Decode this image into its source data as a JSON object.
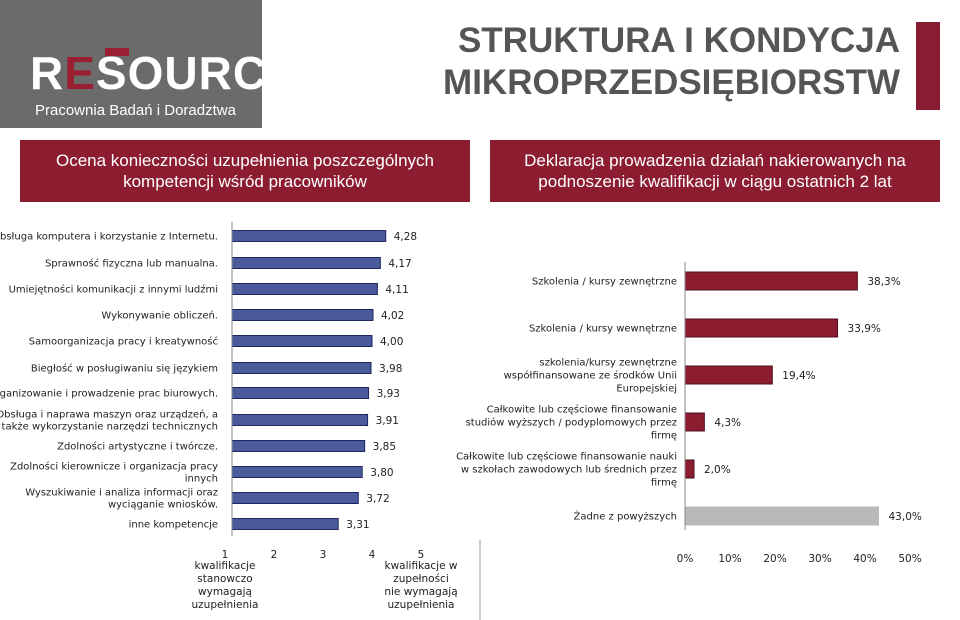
{
  "logo": {
    "word_re": "R",
    "word_e": "E",
    "word_rest": "SOURCE",
    "subtitle": "Pracownia Badań i Doradztwa"
  },
  "title_lines": [
    "STRUKTURA I KONDYCJA",
    "MIKROPRZEDSIĘBIORSTW"
  ],
  "left_header": [
    "Ocena konieczności uzupełnienia poszczególnych",
    "kompetencji wśród pracowników"
  ],
  "right_header": [
    "Deklaracja prowadzenia działań nakierowanych na",
    "podnoszenie kwalifikacji w ciągu ostatnich 2 lat"
  ],
  "chart_data": [
    {
      "type": "bar",
      "orientation": "horizontal",
      "categories": [
        [
          "Obsługa komputera i korzystanie z Internetu."
        ],
        [
          "Sprawność fizyczna lub manualna."
        ],
        [
          "Umiejętności komunikacji  z innymi ludźmi"
        ],
        [
          "Wykonywanie obliczeń."
        ],
        [
          "Samoorganizacja pracy i kreatywność"
        ],
        [
          "Biegłość w posługiwaniu się językiem"
        ],
        [
          "Organizowanie i prowadzenie prac biurowych."
        ],
        [
          "Obsługa i naprawa maszyn oraz urządzeń, a",
          "także wykorzystanie narzędzi technicznych"
        ],
        [
          "Zdolności artystyczne i twórcze."
        ],
        [
          "Zdolności kierownicze i organizacja pracy",
          "innych"
        ],
        [
          "Wyszukiwanie i analiza informacji oraz",
          "wyciąganie wniosków."
        ],
        [
          "inne kompetencje"
        ]
      ],
      "values": [
        4.28,
        4.17,
        4.11,
        4.02,
        4.0,
        3.98,
        3.93,
        3.91,
        3.85,
        3.8,
        3.72,
        3.31
      ],
      "value_labels": [
        "4,28",
        "4,17",
        "4,11",
        "4,02",
        "4,00",
        "3,98",
        "3,93",
        "3,91",
        "3,85",
        "3,80",
        "3,72",
        "3,31"
      ],
      "xlim": [
        1,
        5
      ],
      "ticks": [
        "1",
        "2",
        "3",
        "4",
        "5"
      ],
      "tick_captions": {
        "min": [
          "kwalifikacje",
          "stanowczo",
          "wymagają",
          "uzupełnienia"
        ],
        "max": [
          "kwalifikacje w",
          "zupełności",
          "nie wymagają",
          "uzupełnienia"
        ]
      },
      "colors": {
        "fill": "#4a5a9b",
        "edge": "#1c2660"
      },
      "grid": false,
      "legend": "none"
    },
    {
      "type": "bar",
      "orientation": "horizontal",
      "categories": [
        [
          "Szkolenia / kursy zewnętrzne"
        ],
        [
          "Szkolenia / kursy wewnętrzne"
        ],
        [
          "szkolenia/kursy  zewnętrzne",
          "współfinansowane ze środków Unii",
          "Europejskiej"
        ],
        [
          "Całkowite lub częściowe finansowanie",
          "studiów wyższych / podyplomowych przez",
          "firmę"
        ],
        [
          "Całkowite lub częściowe finansowanie nauki",
          "w szkołach zawodowych lub średnich przez",
          "firmę"
        ],
        [
          "Żadne z powyższych"
        ]
      ],
      "values": [
        38.3,
        33.9,
        19.4,
        4.3,
        2.0,
        43.0
      ],
      "value_labels": [
        "38,3%",
        "33,9%",
        "19,4%",
        "4,3%",
        "2,0%",
        "43,0%"
      ],
      "xlim": [
        0,
        50
      ],
      "ticks": [
        "0%",
        "10%",
        "20%",
        "30%",
        "40%",
        "50%"
      ],
      "colors": {
        "fill": "#8c1d31",
        "edge": "#4d0f1b",
        "none_fill": "#b9b9b9",
        "none_edge": "#b9b9b9"
      },
      "grid": false,
      "legend": "none"
    }
  ]
}
